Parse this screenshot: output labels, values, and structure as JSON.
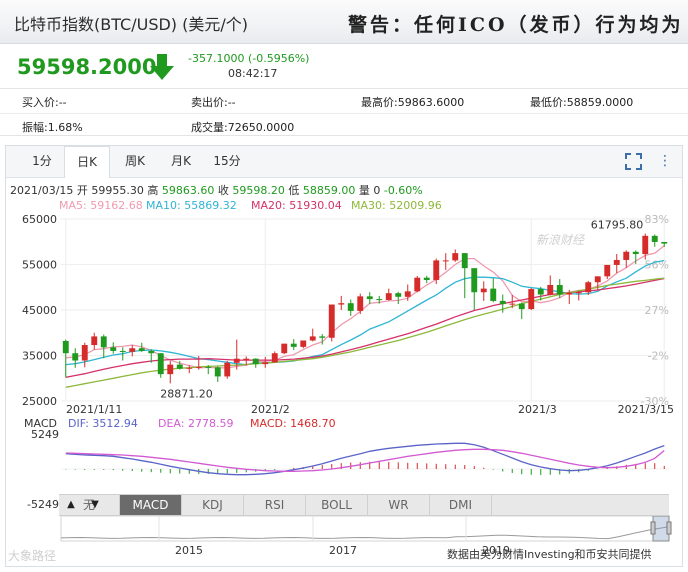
{
  "header": {
    "title": "比特币指数(BTC/USD) (美元/个)",
    "warning": "警告：任何ICO（发币）行为均为"
  },
  "quote": {
    "price": "59598.2000",
    "change": "-357.1000 (-0.5956%)",
    "time": "08:42:17"
  },
  "stats": {
    "row1": [
      "买入价:--",
      "卖出价:--",
      "最高价:59863.6000",
      "最低价:58859.0000"
    ],
    "row2": [
      "振幅:1.68%",
      "成交量:72650.0000"
    ]
  },
  "tabs": [
    "1分",
    "日K",
    "周K",
    "月K",
    "15分"
  ],
  "active_tab": "日K",
  "ohlc_line": {
    "date": "2021/03/15",
    "open_label": "开",
    "open": "59955.30",
    "high_label": "高",
    "high": "59863.60",
    "close_label": "收",
    "close": "59598.20",
    "low_label": "低",
    "low": "58859.00",
    "vol_label": "量",
    "vol": "0",
    "pct": "-0.60%"
  },
  "ma_legend": [
    {
      "label": "MA5: 59162.68",
      "color": "#ef9ab0"
    },
    {
      "label": "MA10: 55869.32",
      "color": "#2fb5d4"
    },
    {
      "label": "MA20: 51930.04",
      "color": "#d4326a"
    },
    {
      "label": "MA30: 52009.96",
      "color": "#8db83b"
    }
  ],
  "price_axis": [
    "65000",
    "55000",
    "45000",
    "35000",
    "25000"
  ],
  "pct_axis": [
    "83%",
    "56%",
    "27%",
    "-2%",
    "-30%"
  ],
  "date_axis": [
    "2021/1/11",
    "2021/2",
    "2021/3",
    "2021/3/15"
  ],
  "annotations": {
    "max": "61795.80",
    "min": "28871.20"
  },
  "macd_legend": {
    "title": "MACD",
    "dif": "DIF: 3512.94",
    "dea": "DEA: 2778.59",
    "macd": "MACD: 1468.70"
  },
  "macd_axis": [
    "5249",
    "-5249"
  ],
  "indicators": [
    "无",
    "MACD",
    "KDJ",
    "RSI",
    "BOLL",
    "WR",
    "DMI"
  ],
  "active_indicator": "MACD",
  "nav_years": [
    "2015",
    "2017",
    "2019"
  ],
  "credit": "数据由英为财情Investing和币安共同提供",
  "watermark": "新浪财经",
  "corner_mark": "大象路径",
  "colors": {
    "up": "#d62b2b",
    "down": "#1f9a1f",
    "dif": "#5a64c8",
    "dea": "#d25ad2"
  },
  "chart_data": {
    "type": "candlestick",
    "dates": [
      "2021/1/11",
      "2021/1/12",
      "2021/1/13",
      "2021/1/14",
      "2021/1/15",
      "2021/1/16",
      "2021/1/17",
      "2021/1/18",
      "2021/1/19",
      "2021/1/20",
      "2021/1/21",
      "2021/1/22",
      "2021/1/23",
      "2021/1/24",
      "2021/1/25",
      "2021/1/26",
      "2021/1/27",
      "2021/1/28",
      "2021/1/29",
      "2021/1/30",
      "2021/1/31",
      "2021/2/1",
      "2021/2/2",
      "2021/2/3",
      "2021/2/4",
      "2021/2/5",
      "2021/2/6",
      "2021/2/7",
      "2021/2/8",
      "2021/2/9",
      "2021/2/10",
      "2021/2/11",
      "2021/2/12",
      "2021/2/13",
      "2021/2/14",
      "2021/2/15",
      "2021/2/16",
      "2021/2/17",
      "2021/2/18",
      "2021/2/19",
      "2021/2/20",
      "2021/2/21",
      "2021/2/22",
      "2021/2/23",
      "2021/2/24",
      "2021/2/25",
      "2021/2/26",
      "2021/2/27",
      "2021/2/28",
      "2021/3/1",
      "2021/3/2",
      "2021/3/3",
      "2021/3/4",
      "2021/3/5",
      "2021/3/6",
      "2021/3/7",
      "2021/3/8",
      "2021/3/9",
      "2021/3/10",
      "2021/3/11",
      "2021/3/12",
      "2021/3/13",
      "2021/3/14",
      "2021/3/15"
    ],
    "ohlc": [
      [
        38200,
        38500,
        30200,
        35500
      ],
      [
        35500,
        36600,
        32300,
        33900
      ],
      [
        33900,
        37800,
        32400,
        37300
      ],
      [
        37300,
        40000,
        36300,
        39200
      ],
      [
        39200,
        39600,
        34400,
        36800
      ],
      [
        36800,
        37900,
        35400,
        36000
      ],
      [
        36000,
        36800,
        33900,
        35800
      ],
      [
        35800,
        37300,
        34800,
        36600
      ],
      [
        36600,
        37800,
        35800,
        36000
      ],
      [
        36000,
        36400,
        33400,
        35500
      ],
      [
        35500,
        35500,
        30100,
        30900
      ],
      [
        30900,
        33800,
        28871.2,
        33000
      ],
      [
        33000,
        33800,
        31900,
        32100
      ],
      [
        32100,
        32900,
        31100,
        32300
      ],
      [
        32300,
        34900,
        31900,
        32500
      ],
      [
        32500,
        32900,
        30900,
        32400
      ],
      [
        32400,
        32600,
        29200,
        30400
      ],
      [
        30400,
        33800,
        29900,
        33400
      ],
      [
        33400,
        38500,
        31900,
        34300
      ],
      [
        34300,
        34800,
        32800,
        34300
      ],
      [
        34300,
        34400,
        32300,
        33100
      ],
      [
        33100,
        34700,
        32300,
        33500
      ],
      [
        33500,
        35900,
        33400,
        35500
      ],
      [
        35500,
        37600,
        35300,
        37600
      ],
      [
        37600,
        38600,
        36200,
        36900
      ],
      [
        36900,
        38300,
        36600,
        38300
      ],
      [
        38300,
        40900,
        38100,
        39200
      ],
      [
        39200,
        39700,
        37400,
        38900
      ],
      [
        38900,
        46200,
        38100,
        46200
      ],
      [
        46200,
        48100,
        45000,
        46500
      ],
      [
        46500,
        47300,
        43700,
        44800
      ],
      [
        44800,
        48600,
        44100,
        48000
      ],
      [
        48000,
        48900,
        46300,
        47400
      ],
      [
        47400,
        48100,
        46400,
        47200
      ],
      [
        47200,
        49700,
        47100,
        48700
      ],
      [
        48700,
        49000,
        46300,
        47900
      ],
      [
        47900,
        50600,
        47000,
        49100
      ],
      [
        49100,
        52500,
        48900,
        52100
      ],
      [
        52100,
        52500,
        50900,
        51600
      ],
      [
        51600,
        56300,
        50700,
        55900
      ],
      [
        55900,
        57500,
        53800,
        55900
      ],
      [
        55900,
        58300,
        55600,
        57500
      ],
      [
        57500,
        57500,
        47600,
        54200
      ],
      [
        54200,
        54200,
        45000,
        48900
      ],
      [
        48900,
        51300,
        47000,
        49700
      ],
      [
        49700,
        52000,
        46700,
        47000
      ],
      [
        47000,
        48400,
        44400,
        46300
      ],
      [
        46300,
        48300,
        45400,
        46400
      ],
      [
        46400,
        46600,
        43000,
        45200
      ],
      [
        45200,
        49800,
        45000,
        49600
      ],
      [
        49600,
        50100,
        47100,
        48400
      ],
      [
        48400,
        52600,
        48200,
        50500
      ],
      [
        50500,
        51800,
        47600,
        48400
      ],
      [
        48400,
        49400,
        46300,
        48800
      ],
      [
        48800,
        49200,
        47100,
        48900
      ],
      [
        48900,
        51400,
        48300,
        51100
      ],
      [
        51100,
        52400,
        49300,
        52400
      ],
      [
        52400,
        54900,
        51800,
        54900
      ],
      [
        54900,
        57300,
        53100,
        56000
      ],
      [
        56000,
        58100,
        54300,
        57800
      ],
      [
        57800,
        58100,
        55100,
        57300
      ],
      [
        57300,
        61795.8,
        56100,
        61300
      ],
      [
        61300,
        61600,
        58900,
        59955.3
      ],
      [
        59955.3,
        59863.6,
        58859,
        59598.2
      ]
    ],
    "ma5": [
      34500,
      34700,
      35200,
      36300,
      36500,
      36900,
      37000,
      37300,
      36900,
      36100,
      35000,
      34000,
      33300,
      32800,
      32300,
      32400,
      32300,
      32300,
      32600,
      32900,
      33600,
      33700,
      34000,
      34800,
      35200,
      36300,
      37300,
      38000,
      40000,
      41800,
      43100,
      44700,
      46500,
      46700,
      47000,
      47100,
      47600,
      49100,
      50500,
      51700,
      53300,
      55000,
      56300,
      56300,
      54700,
      53300,
      51400,
      48200,
      46800,
      47000,
      46600,
      47000,
      47700,
      48900,
      49300,
      49500,
      50300,
      51400,
      53100,
      54300,
      55800,
      57000,
      57500,
      59162.68
    ],
    "ma10": [
      33000,
      33200,
      33600,
      34100,
      34600,
      35100,
      35400,
      35900,
      36100,
      36200,
      36000,
      35700,
      35300,
      34800,
      34300,
      34100,
      33800,
      33500,
      33200,
      33000,
      33300,
      33400,
      33500,
      33600,
      33800,
      34300,
      34800,
      35200,
      36300,
      37400,
      38400,
      39500,
      40800,
      41600,
      42400,
      43600,
      44800,
      46000,
      47200,
      48300,
      49800,
      51100,
      51900,
      52200,
      52200,
      52100,
      51900,
      51100,
      50200,
      49900,
      49700,
      49300,
      49000,
      48600,
      48500,
      48600,
      49100,
      50300,
      51200,
      52000,
      53400,
      54700,
      55500,
      55869.32
    ],
    "ma20": [
      30200,
      30600,
      31000,
      31500,
      32000,
      32400,
      32800,
      33200,
      33500,
      33800,
      34000,
      34100,
      34200,
      34200,
      34200,
      34300,
      34200,
      34100,
      34000,
      34000,
      34000,
      34000,
      34000,
      34100,
      34200,
      34400,
      34600,
      34900,
      35300,
      35800,
      36300,
      36800,
      37400,
      38000,
      38600,
      39200,
      39800,
      40500,
      41200,
      41900,
      42700,
      43500,
      44200,
      44900,
      45400,
      46000,
      46400,
      46800,
      47200,
      47600,
      48000,
      48400,
      48600,
      48800,
      49000,
      49200,
      49400,
      49700,
      50000,
      50300,
      50700,
      51100,
      51500,
      51930.04
    ],
    "ma30": [
      28000,
      28400,
      28800,
      29200,
      29600,
      30000,
      30400,
      30800,
      31200,
      31500,
      31800,
      32000,
      32200,
      32300,
      32500,
      32600,
      32700,
      32800,
      32900,
      33000,
      33200,
      33300,
      33500,
      33700,
      33900,
      34100,
      34300,
      34600,
      35000,
      35400,
      35800,
      36300,
      36800,
      37300,
      37800,
      38300,
      38900,
      39500,
      40100,
      40800,
      41500,
      42200,
      42900,
      43500,
      44100,
      44600,
      45200,
      45800,
      46400,
      46900,
      47400,
      47900,
      48400,
      48800,
      49200,
      49600,
      50000,
      50400,
      50700,
      51000,
      51300,
      51500,
      51800,
      52009.96
    ],
    "macd_dif": [
      2300,
      2200,
      2100,
      2050,
      2000,
      1900,
      1700,
      1500,
      1250,
      1000,
      700,
      400,
      150,
      -100,
      -350,
      -550,
      -700,
      -800,
      -850,
      -850,
      -800,
      -700,
      -550,
      -350,
      -100,
      150,
      450,
      800,
      1200,
      1600,
      1950,
      2300,
      2650,
      2900,
      3100,
      3250,
      3400,
      3550,
      3650,
      3750,
      3800,
      3850,
      3850,
      3650,
      3250,
      2750,
      2200,
      1650,
      1100,
      650,
      300,
      50,
      -150,
      -250,
      -200,
      -50,
      200,
      500,
      900,
      1400,
      1900,
      2400,
      3000,
      3512.94
    ],
    "macd_dea": [
      2400,
      2350,
      2300,
      2250,
      2200,
      2150,
      2100,
      2000,
      1900,
      1750,
      1600,
      1450,
      1250,
      1050,
      850,
      650,
      450,
      250,
      100,
      -50,
      -150,
      -250,
      -300,
      -350,
      -350,
      -300,
      -250,
      -150,
      0,
      200,
      400,
      650,
      900,
      1150,
      1400,
      1650,
      1900,
      2100,
      2300,
      2500,
      2650,
      2800,
      2900,
      2950,
      2950,
      2900,
      2800,
      2600,
      2350,
      2050,
      1750,
      1450,
      1150,
      850,
      600,
      400,
      250,
      200,
      250,
      400,
      650,
      1000,
      1600,
      2778.59
    ],
    "macd_hist": [
      -200,
      -300,
      -400,
      -400,
      -400,
      -500,
      -800,
      -1000,
      -1300,
      -1500,
      -1800,
      -2100,
      -2200,
      -2300,
      -2400,
      -2400,
      -2300,
      -2100,
      -1900,
      -1600,
      -1300,
      -900,
      -500,
      0,
      500,
      900,
      1400,
      1900,
      2400,
      2800,
      3100,
      3300,
      3500,
      3500,
      3400,
      3200,
      3000,
      2900,
      2700,
      2500,
      2300,
      2100,
      1900,
      1400,
      600,
      -300,
      -1200,
      -1900,
      -2500,
      -2800,
      -2900,
      -2800,
      -2600,
      -2200,
      -1600,
      -900,
      -100,
      600,
      1300,
      2000,
      2500,
      2800,
      2800,
      1468.7
    ],
    "ylim": [
      25000,
      65000
    ],
    "macd_ylim": [
      -5249,
      5249
    ],
    "legend_placement": "top-left",
    "grid": true
  }
}
